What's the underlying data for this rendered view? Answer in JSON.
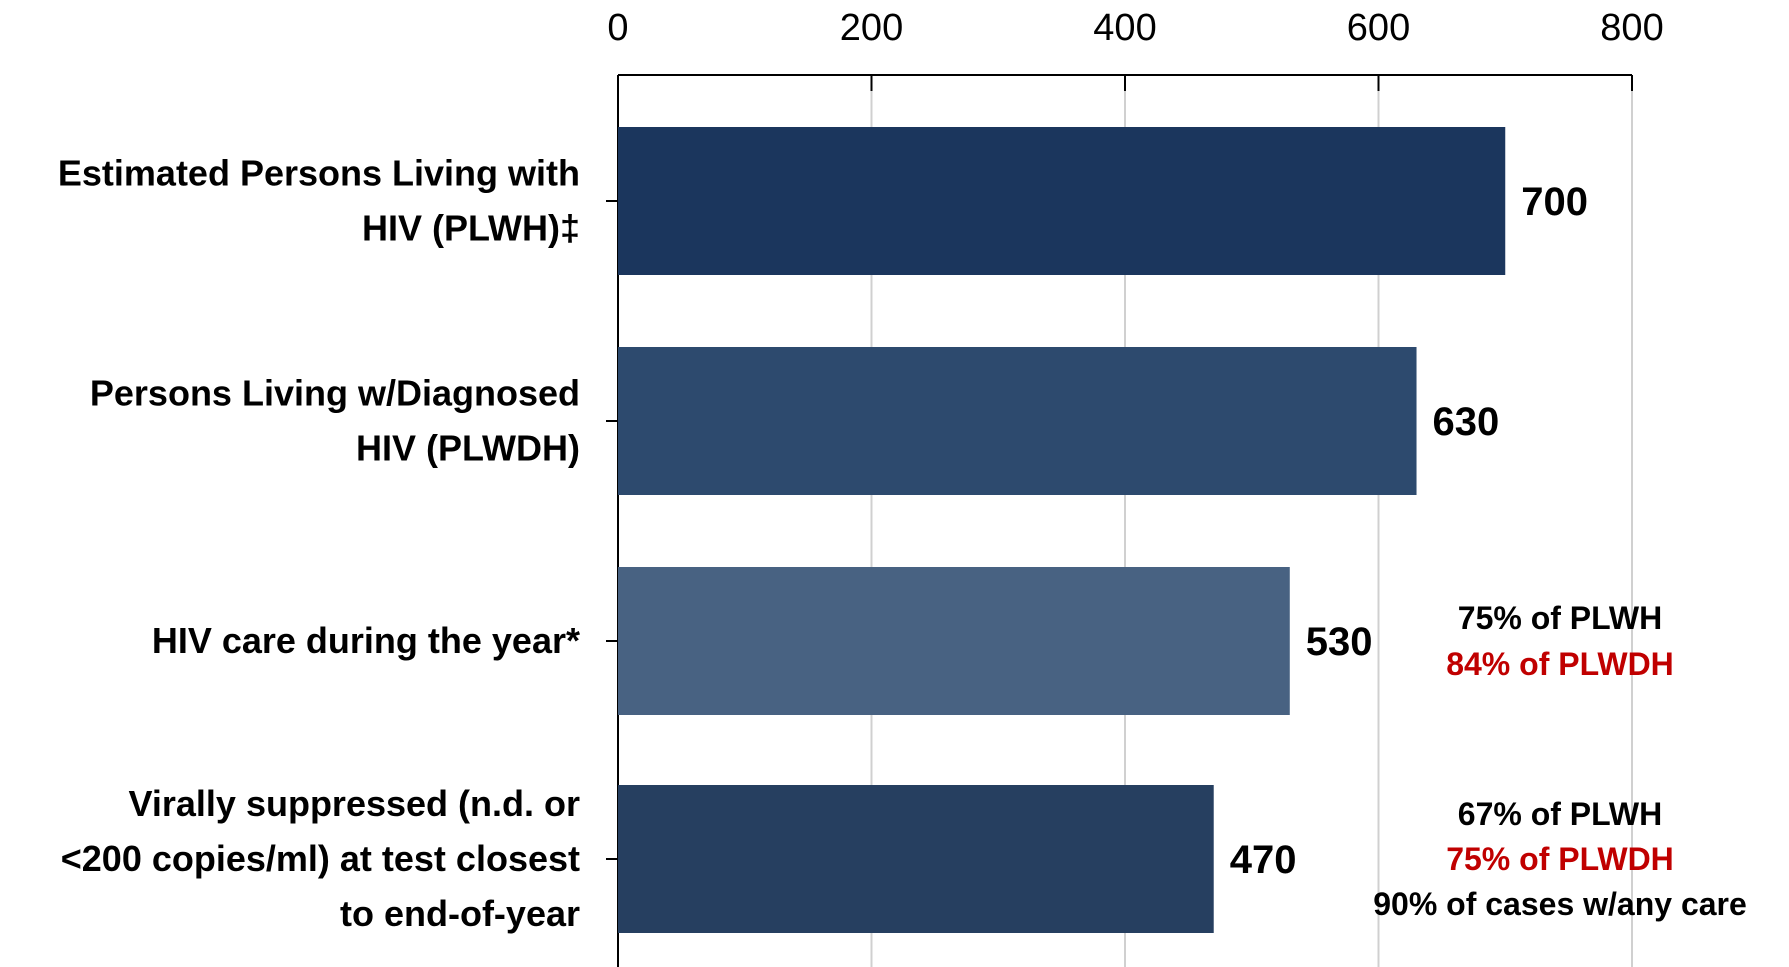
{
  "chart_data": {
    "type": "bar",
    "orientation": "horizontal",
    "categories": [
      [
        "Estimated Persons Living with",
        "HIV (PLWH)‡"
      ],
      [
        "Persons Living w/Diagnosed",
        "HIV (PLWDH)"
      ],
      [
        "HIV care during the year*"
      ],
      [
        "Virally suppressed (n.d. or",
        "<200 copies/ml) at test closest",
        "to end-of-year"
      ]
    ],
    "values": [
      700,
      630,
      530,
      470
    ],
    "value_labels": [
      "700",
      "630",
      "530",
      "470"
    ],
    "bar_colors": [
      "#1b365d",
      "#2d4a6e",
      "#486282",
      "#263f60"
    ],
    "xlim": [
      0,
      800
    ],
    "xticks": [
      0,
      200,
      400,
      600,
      800
    ],
    "x_axis_position": "top",
    "grid": true,
    "annotations": [
      {
        "category_index": 2,
        "lines": [
          {
            "text": "75% of PLWH",
            "color": "#000000"
          },
          {
            "text": "84% of PLWDH",
            "color": "#c00000"
          }
        ]
      },
      {
        "category_index": 3,
        "lines": [
          {
            "text": "67% of PLWH",
            "color": "#000000"
          },
          {
            "text": "75% of PLWDH",
            "color": "#c00000"
          },
          {
            "text": "90% of cases w/any care",
            "color": "#000000"
          }
        ]
      }
    ]
  }
}
